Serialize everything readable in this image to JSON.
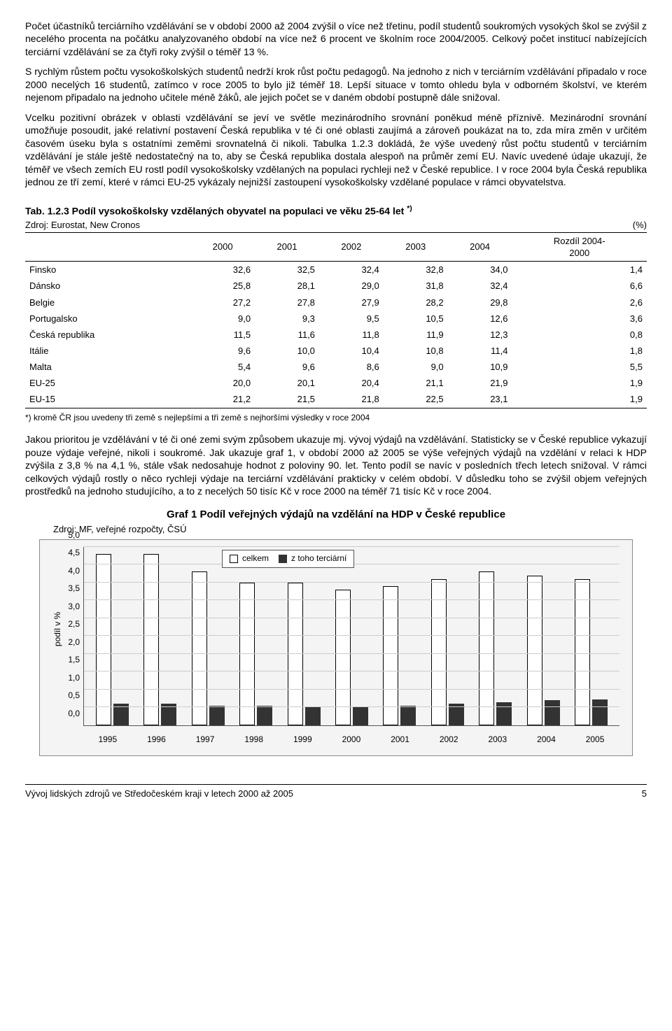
{
  "paragraphs": {
    "p1": "Počet účastníků terciárního vzdělávání se v období 2000 až 2004 zvýšil o více než třetinu, podíl studentů soukromých vysokých škol se zvýšil z necelého procenta na počátku analyzovaného období na více než 6 procent ve školním roce 2004/2005. Celkový počet institucí nabízejících terciární vzdělávání se za čtyři roky zvýšil o téměř 13 %.",
    "p2": "S rychlým růstem počtu vysokoškolských studentů nedrží krok růst počtu pedagogů. Na jednoho z nich v terciárním vzdělávání připadalo v roce 2000 necelých 16 studentů, zatímco v roce 2005 to bylo již téměř 18. Lepší situace v tomto ohledu byla v odborném školství, ve kterém nejenom připadalo na jednoho učitele méně žáků, ale jejich počet se v daném období postupně dále snižoval.",
    "p3": "Vcelku pozitivní obrázek v oblasti vzdělávání se jeví ve světle mezinárodního srovnání poněkud méně příznivě. Mezinárodní srovnání umožňuje posoudit, jaké relativní postavení Česká republika v té či oné oblasti zaujímá a zároveň poukázat na to, zda míra změn v určitém časovém úseku byla s ostatními zeměmi srovnatelná či nikoli. Tabulka 1.2.3 dokládá, že výše uvedený růst počtu studentů v terciárním vzdělávání je stále ještě nedostatečný na to, aby se Česká republika dostala alespoň na průměr zemí EU. Navíc uvedené údaje ukazují, že téměř ve všech zemích EU rostl podíl vysokoškolsky vzdělaných na populaci rychleji než v České republice. I v roce 2004 byla Česká republika jednou ze tří zemí, které v rámci EU-25 vykázaly nejnižší zastoupení vysokoškolsky vzdělané populace v rámci obyvatelstva.",
    "p4": "Jakou prioritou je vzdělávání v té či oné zemi svým způsobem ukazuje mj. vývoj výdajů na vzdělávání. Statisticky se v České republice vykazují pouze výdaje veřejné, nikoli i soukromé. Jak ukazuje graf 1, v období 2000 až 2005 se výše veřejných výdajů na vzdělání v relaci k HDP zvýšila z 3,8 % na 4,1 %, stále však nedosahuje hodnot z poloviny 90. let. Tento podíl se navíc v posledních třech letech snižoval. V rámci celkových výdajů rostly o něco rychleji výdaje na terciární vzdělávání prakticky v celém období. V důsledku toho se zvýšil objem veřejných prostředků na jednoho studujícího, a to z necelých 50 tisíc Kč v roce 2000 na téměř 71 tisíc Kč v roce 2004."
  },
  "table": {
    "title_prefix": "Tab. 1.2.3 Podíl vysokoškolsky vzdělaných obyvatel na populaci ve věku 25-64 let",
    "title_sup": "*)",
    "source": "Zdroj: Eurostat, New Cronos",
    "unit": "(%)",
    "columns": [
      "",
      "2000",
      "2001",
      "2002",
      "2003",
      "2004",
      "Rozdíl 2004-2000"
    ],
    "rows": [
      [
        "Finsko",
        "32,6",
        "32,5",
        "32,4",
        "32,8",
        "34,0",
        "1,4"
      ],
      [
        "Dánsko",
        "25,8",
        "28,1",
        "29,0",
        "31,8",
        "32,4",
        "6,6"
      ],
      [
        "Belgie",
        "27,2",
        "27,8",
        "27,9",
        "28,2",
        "29,8",
        "2,6"
      ],
      [
        "Portugalsko",
        "9,0",
        "9,3",
        "9,5",
        "10,5",
        "12,6",
        "3,6"
      ],
      [
        "Česká republika",
        "11,5",
        "11,6",
        "11,8",
        "11,9",
        "12,3",
        "0,8"
      ],
      [
        "Itálie",
        "9,6",
        "10,0",
        "10,4",
        "10,8",
        "11,4",
        "1,8"
      ],
      [
        "Malta",
        "5,4",
        "9,6",
        "8,6",
        "9,0",
        "10,9",
        "5,5"
      ],
      [
        "EU-25",
        "20,0",
        "20,1",
        "20,4",
        "21,1",
        "21,9",
        "1,9"
      ],
      [
        "EU-15",
        "21,2",
        "21,5",
        "21,8",
        "22,5",
        "23,1",
        "1,9"
      ]
    ],
    "footnote": "*) kromě ČR jsou uvedeny tři země s nejlepšími a tři země s nejhoršími výsledky v roce 2004"
  },
  "chart": {
    "title": "Graf 1 Podíl veřejných výdajů na vzdělání na HDP v České republice",
    "source": "Zdroj: MF, veřejné rozpočty, ČSÚ",
    "y_label": "podíl v %",
    "y_max": 5.0,
    "y_step": 0.5,
    "y_ticks": [
      "0,0",
      "0,5",
      "1,0",
      "1,5",
      "2,0",
      "2,5",
      "3,0",
      "3,5",
      "4,0",
      "4,5",
      "5,0"
    ],
    "legend": {
      "total": "celkem",
      "tert": "z toho terciární"
    },
    "categories": [
      "1995",
      "1996",
      "1997",
      "1998",
      "1999",
      "2000",
      "2001",
      "2002",
      "2003",
      "2004",
      "2005"
    ],
    "series_total": [
      4.8,
      4.8,
      4.3,
      4.0,
      4.0,
      3.8,
      3.9,
      4.1,
      4.3,
      4.2,
      4.1
    ],
    "series_tert": [
      0.6,
      0.6,
      0.55,
      0.55,
      0.52,
      0.5,
      0.55,
      0.6,
      0.65,
      0.7,
      0.72
    ],
    "colors": {
      "total_fill": "#ffffff",
      "total_border": "#000000",
      "tert_fill": "#333333",
      "bg": "#f4f4f4",
      "grid": "#cccccc",
      "axis": "#555555"
    }
  },
  "footer": {
    "text": "Vývoj lidských zdrojů ve Středočeském kraji v letech 2000 až 2005",
    "page": "5"
  }
}
